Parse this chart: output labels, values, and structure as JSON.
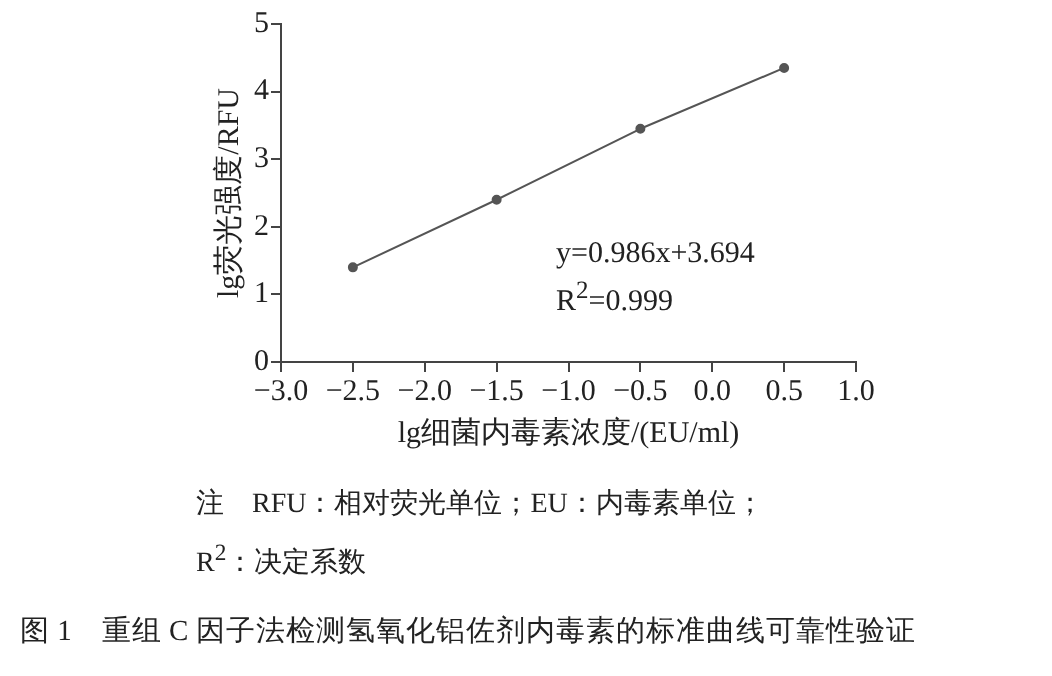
{
  "chart_data": {
    "type": "line",
    "title": "图 1　重组 C 因子法检测氢氧化铝佐剂内毒素的标准曲线可靠性验证",
    "xlabel": "lg细菌内毒素浓度/(EU/ml)",
    "ylabel": "lg荧光强度/RFU",
    "x": [
      -2.5,
      -1.5,
      -0.5,
      0.5
    ],
    "series": [
      {
        "color": "#555555",
        "values": [
          1.4,
          2.4,
          3.45,
          4.35
        ]
      }
    ],
    "xlim": [
      -3,
      1
    ],
    "xticks": [
      {
        "value": -3,
        "label": "−3.0"
      },
      {
        "value": -2.5,
        "label": "−2.5"
      },
      {
        "value": -2,
        "label": "−2.0"
      },
      {
        "value": -1.5,
        "label": "−1.5"
      },
      {
        "value": -1,
        "label": "−1.0"
      },
      {
        "value": -0.5,
        "label": "−0.5"
      },
      {
        "value": 0,
        "label": "0.0"
      },
      {
        "value": 0.5,
        "label": "0.5"
      },
      {
        "value": 1,
        "label": "1.0"
      }
    ],
    "ylim": [
      0,
      5
    ],
    "yticks": [
      0,
      1,
      2,
      3,
      4,
      5
    ],
    "grid": false,
    "legend": false,
    "marker": "circle",
    "line_style": "solid",
    "annotations": [
      "y=0.986x+3.694",
      "R$^{2}$=0.999",
      "注　RFU：相对荧光单位；EU：内毒素单位；",
      "R$^{2}$：决定系数"
    ]
  }
}
